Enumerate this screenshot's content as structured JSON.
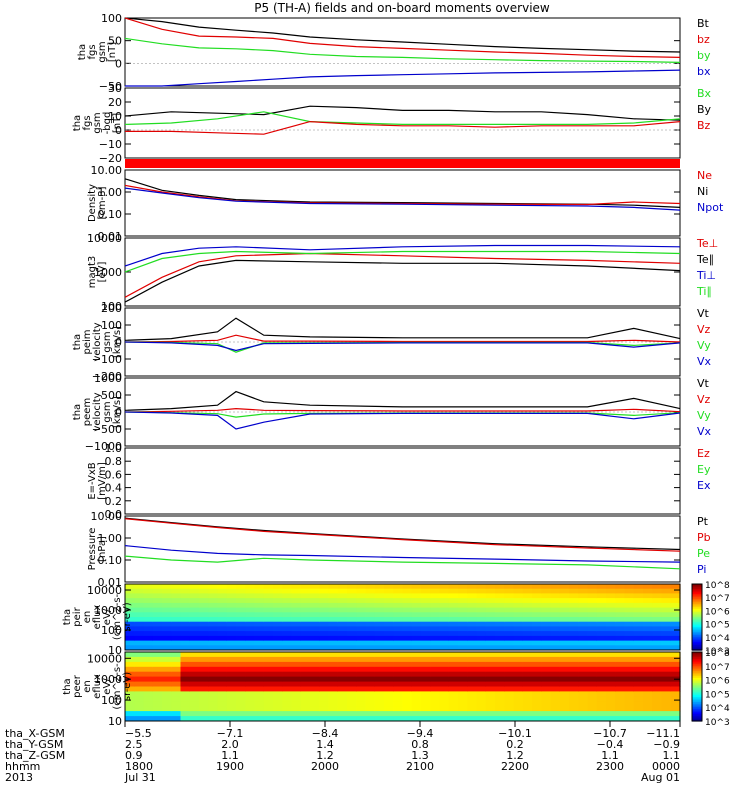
{
  "title": "P5 (TH-A) fields and on-board moments overview",
  "colors": {
    "black": "#000000",
    "red": "#e00000",
    "green": "#22dd22",
    "blue": "#0000cc"
  },
  "chart_data": [
    {
      "type": "line",
      "panel": "fgs_gsm",
      "ylabel": [
        "tha",
        "fgs",
        "gsm",
        "[nT]"
      ],
      "ylim": [
        -50,
        100
      ],
      "ticks": [
        "100",
        "50",
        "0",
        "−50"
      ],
      "tickvalues": [
        100,
        50,
        0,
        -50
      ],
      "legend": [
        "Bt",
        "bz",
        "by",
        "bx"
      ],
      "series": [
        {
          "name": "Bt",
          "color": "black",
          "x": [
            0,
            0.4,
            0.8,
            1.2,
            1.6,
            2,
            2.5,
            3,
            3.5,
            4,
            4.5,
            5,
            5.5,
            6
          ],
          "values": [
            112,
            92,
            80,
            73,
            67,
            58,
            52,
            47,
            42,
            37,
            33,
            30,
            27,
            25
          ]
        },
        {
          "name": "bz",
          "color": "red",
          "x": [
            0,
            0.4,
            0.8,
            1.2,
            1.6,
            2,
            2.5,
            3,
            3.5,
            4,
            4.5,
            5,
            5.5,
            6
          ],
          "values": [
            100,
            75,
            60,
            58,
            55,
            44,
            37,
            33,
            29,
            25,
            22,
            18,
            15,
            13
          ]
        },
        {
          "name": "by",
          "color": "green",
          "x": [
            0,
            0.4,
            0.8,
            1.2,
            1.6,
            2,
            2.5,
            3,
            3.5,
            4,
            4.5,
            5,
            5.5,
            6
          ],
          "values": [
            55,
            43,
            34,
            32,
            28,
            20,
            15,
            13,
            10,
            8,
            6,
            5,
            4,
            2
          ]
        },
        {
          "name": "bx",
          "color": "blue",
          "x": [
            0,
            0.4,
            0.8,
            1.2,
            1.6,
            2,
            2.5,
            3,
            3.5,
            4,
            4.5,
            5,
            5.5,
            6
          ],
          "values": [
            -57,
            -50,
            -45,
            -40,
            -35,
            -30,
            -27,
            -25,
            -23,
            -21,
            -20,
            -19,
            -17,
            -15
          ]
        }
      ]
    },
    {
      "type": "line",
      "panel": "fgs_gsm_detrended",
      "ylabel": [
        "tha",
        "fgs",
        "gsm",
        "-bgd",
        "[nT]"
      ],
      "ylim": [
        -20,
        30
      ],
      "ticks": [
        "30",
        "20",
        "10",
        "0",
        "−10",
        "−20"
      ],
      "tickvalues": [
        30,
        20,
        10,
        0,
        -10,
        -20
      ],
      "legend": [
        "Bx",
        "By",
        "Bz"
      ],
      "series": [
        {
          "name": "Bx",
          "color": "black",
          "x": [
            0,
            0.5,
            1,
            1.5,
            2,
            2.5,
            3,
            3.5,
            4,
            4.5,
            5,
            5.5,
            6
          ],
          "values": [
            10,
            13,
            12,
            11,
            17,
            16,
            14,
            14,
            13,
            13,
            11,
            8,
            7
          ]
        },
        {
          "name": "By",
          "color": "green",
          "x": [
            0,
            0.5,
            1,
            1.5,
            2,
            2.5,
            3,
            3.5,
            4,
            4.5,
            5,
            5.5,
            6
          ],
          "values": [
            4,
            5,
            8,
            13,
            6,
            5,
            4,
            4,
            4,
            4,
            4,
            5,
            8
          ]
        },
        {
          "name": "Bz",
          "color": "red",
          "x": [
            0,
            0.5,
            1,
            1.5,
            2,
            2.5,
            3,
            3.5,
            4,
            4.5,
            5,
            5.5,
            6
          ],
          "values": [
            -1,
            -1,
            -2,
            -3,
            6,
            4,
            3,
            3,
            2,
            3,
            3,
            3,
            6
          ]
        }
      ]
    },
    {
      "type": "line",
      "panel": "density",
      "yscale": "log",
      "ylabel": [
        "Density",
        "[cm-3]"
      ],
      "ylim": [
        0.01,
        10
      ],
      "ticks": [
        "10.00",
        "1.00",
        "0.10",
        "0.01"
      ],
      "tickvalues": [
        10,
        1,
        0.1,
        0.01
      ],
      "legend": [
        "Ne",
        "Ni",
        "Npot"
      ],
      "series": [
        {
          "name": "Ne",
          "color": "black",
          "x": [
            0,
            0.4,
            0.8,
            1.2,
            2,
            3,
            4,
            5,
            5.5,
            6
          ],
          "values": [
            4,
            1.2,
            0.7,
            0.45,
            0.35,
            0.33,
            0.3,
            0.28,
            0.25,
            0.2
          ]
        },
        {
          "name": "Ni",
          "color": "red",
          "x": [
            0,
            0.4,
            0.8,
            1.2,
            2,
            3,
            4,
            5,
            5.5,
            6
          ],
          "values": [
            2,
            1,
            0.6,
            0.4,
            0.32,
            0.3,
            0.28,
            0.27,
            0.35,
            0.3
          ]
        },
        {
          "name": "Npot",
          "color": "blue",
          "x": [
            0,
            0.4,
            0.8,
            1.2,
            2,
            3,
            4,
            5,
            5.5,
            6
          ],
          "values": [
            1.5,
            0.9,
            0.55,
            0.38,
            0.3,
            0.28,
            0.25,
            0.23,
            0.2,
            0.15
          ]
        }
      ]
    },
    {
      "type": "line",
      "panel": "temperature",
      "yscale": "log",
      "ylabel": [
        "magt3",
        "[eV]"
      ],
      "ylim": [
        100,
        10000
      ],
      "ticks": [
        "10000",
        "1000",
        "100"
      ],
      "tickvalues": [
        10000,
        1000,
        100
      ],
      "legend": [
        "Te⊥",
        "Te∥",
        "Ti⊥",
        "Ti∥"
      ],
      "series": [
        {
          "name": "Te⊥",
          "color": "red",
          "x": [
            0,
            0.4,
            0.8,
            1.2,
            2,
            3,
            4,
            5,
            6
          ],
          "values": [
            180,
            700,
            2000,
            3000,
            3500,
            3000,
            2500,
            2200,
            1800
          ]
        },
        {
          "name": "Te∥",
          "color": "black",
          "x": [
            0,
            0.4,
            0.8,
            1.2,
            2,
            3,
            4,
            5,
            6
          ],
          "values": [
            130,
            500,
            1500,
            2200,
            2000,
            1800,
            1800,
            1500,
            1100
          ]
        },
        {
          "name": "Ti⊥",
          "color": "blue",
          "x": [
            0,
            0.4,
            0.8,
            1.2,
            2,
            3,
            4,
            5,
            6
          ],
          "values": [
            1500,
            3500,
            5000,
            5500,
            4500,
            5500,
            6000,
            6000,
            5500
          ]
        },
        {
          "name": "Ti∥",
          "color": "green",
          "x": [
            0,
            0.4,
            0.8,
            1.2,
            2,
            3,
            4,
            5,
            6
          ],
          "values": [
            1000,
            2500,
            3500,
            4000,
            3500,
            4000,
            4000,
            4000,
            3500
          ]
        }
      ]
    },
    {
      "type": "line",
      "panel": "peim_velocity",
      "ylabel": [
        "tha",
        "peim",
        "velocity",
        "gsm",
        "[km/s]"
      ],
      "ylim": [
        -200,
        200
      ],
      "ticks": [
        "200",
        "100",
        "0",
        "−100",
        "−200"
      ],
      "tickvalues": [
        200,
        100,
        0,
        -100,
        -200
      ],
      "legend": [
        "Vt",
        "Vz",
        "Vy",
        "Vx"
      ],
      "series": [
        {
          "name": "Vt",
          "color": "black",
          "x": [
            0,
            0.5,
            1,
            1.2,
            1.5,
            2,
            3,
            4,
            5,
            5.5,
            6
          ],
          "values": [
            10,
            20,
            60,
            140,
            40,
            30,
            25,
            25,
            25,
            80,
            20
          ]
        },
        {
          "name": "Vz",
          "color": "red",
          "x": [
            0,
            0.5,
            1,
            1.2,
            1.5,
            2,
            3,
            4,
            5,
            5.5,
            6
          ],
          "values": [
            0,
            3,
            10,
            40,
            5,
            5,
            3,
            3,
            3,
            10,
            0
          ]
        },
        {
          "name": "Vy",
          "color": "green",
          "x": [
            0,
            0.5,
            1,
            1.2,
            1.5,
            2,
            3,
            4,
            5,
            5.5,
            6
          ],
          "values": [
            0,
            -3,
            -10,
            -60,
            -5,
            -5,
            -3,
            -3,
            -3,
            -20,
            -5
          ]
        },
        {
          "name": "Vx",
          "color": "blue",
          "x": [
            0,
            0.5,
            1,
            1.2,
            1.5,
            2,
            3,
            4,
            5,
            5.5,
            6
          ],
          "values": [
            0,
            -5,
            -20,
            -50,
            -10,
            -8,
            -5,
            -5,
            -5,
            -30,
            -5
          ]
        }
      ]
    },
    {
      "type": "line",
      "panel": "peem_velocity",
      "ylabel": [
        "tha",
        "peem",
        "velocity",
        "gsm",
        "[km/s]"
      ],
      "ylim": [
        -1000,
        1000
      ],
      "ticks": [
        "1000",
        "500",
        "0",
        "−500",
        "−1000"
      ],
      "tickvalues": [
        1000,
        500,
        0,
        -500,
        -1000
      ],
      "legend": [
        "Vt",
        "Vz",
        "Vy",
        "Vx"
      ],
      "series": [
        {
          "name": "Vt",
          "color": "black",
          "x": [
            0,
            0.5,
            1,
            1.2,
            1.5,
            2,
            3,
            4,
            5,
            5.5,
            6
          ],
          "values": [
            50,
            100,
            200,
            600,
            300,
            200,
            150,
            150,
            150,
            400,
            100
          ]
        },
        {
          "name": "Vz",
          "color": "red",
          "x": [
            0,
            0.5,
            1,
            1.2,
            1.5,
            2,
            3,
            4,
            5,
            5.5,
            6
          ],
          "values": [
            0,
            20,
            50,
            100,
            50,
            40,
            30,
            30,
            30,
            80,
            10
          ]
        },
        {
          "name": "Vy",
          "color": "green",
          "x": [
            0,
            0.5,
            1,
            1.2,
            1.5,
            2,
            3,
            4,
            5,
            5.5,
            6
          ],
          "values": [
            0,
            -20,
            -50,
            -150,
            -60,
            -40,
            -30,
            -30,
            -30,
            -100,
            -20
          ]
        },
        {
          "name": "Vx",
          "color": "blue",
          "x": [
            0,
            0.5,
            1,
            1.2,
            1.5,
            2,
            3,
            4,
            5,
            5.5,
            6
          ],
          "values": [
            0,
            -30,
            -100,
            -500,
            -300,
            -60,
            -40,
            -40,
            -40,
            -200,
            -30
          ]
        }
      ]
    },
    {
      "type": "line",
      "panel": "efield",
      "ylabel": [
        "E=-VxB",
        "[mV/m]"
      ],
      "ylim": [
        0,
        1
      ],
      "ticks": [
        "1.0",
        "0.8",
        "0.6",
        "0.4",
        "0.2",
        "0.0"
      ],
      "tickvalues": [
        1,
        0.8,
        0.6,
        0.4,
        0.2,
        0
      ],
      "legend": [
        "Ez",
        "Ey",
        "Ex"
      ],
      "series": []
    },
    {
      "type": "line",
      "panel": "pressure",
      "yscale": "log",
      "ylabel": [
        "Pressure",
        "[nPa]"
      ],
      "ylim": [
        0.01,
        10
      ],
      "ticks": [
        "10.00",
        "1.00",
        "0.10",
        "0.01"
      ],
      "tickvalues": [
        10,
        1,
        0.1,
        0.01
      ],
      "legend": [
        "Pt",
        "Pb",
        "Pe",
        "Pi"
      ],
      "series": [
        {
          "name": "Pt",
          "color": "black",
          "x": [
            0,
            0.5,
            1,
            1.5,
            2,
            3,
            4,
            5,
            6
          ],
          "values": [
            8,
            5,
            3.2,
            2.2,
            1.6,
            0.9,
            0.55,
            0.4,
            0.3
          ]
        },
        {
          "name": "Pb",
          "color": "red",
          "x": [
            0,
            0.5,
            1,
            1.5,
            2,
            3,
            4,
            5,
            6
          ],
          "values": [
            7.5,
            4.7,
            3,
            2,
            1.5,
            0.85,
            0.5,
            0.35,
            0.25
          ]
        },
        {
          "name": "Pe",
          "color": "green",
          "x": [
            0,
            0.5,
            1,
            1.5,
            2,
            3,
            4,
            5,
            6
          ],
          "values": [
            0.15,
            0.1,
            0.08,
            0.12,
            0.1,
            0.08,
            0.07,
            0.06,
            0.04
          ]
        },
        {
          "name": "Pi",
          "color": "blue",
          "x": [
            0,
            0.5,
            1,
            1.5,
            2,
            3,
            4,
            5,
            6
          ],
          "values": [
            0.45,
            0.28,
            0.2,
            0.17,
            0.16,
            0.13,
            0.11,
            0.09,
            0.08
          ]
        }
      ]
    },
    {
      "type": "heatmap",
      "panel": "peir_spectrogram",
      "yscale": "log",
      "ylabel": [
        "tha",
        "peir",
        "en",
        "eflux",
        "eV/",
        "(cm^2-s-",
        "sr-eV)"
      ],
      "ylim": [
        10,
        20000
      ],
      "ticks": [
        "10000",
        "1000",
        "100",
        "10"
      ],
      "tickvalues": [
        10000,
        1000,
        100,
        10
      ],
      "colorbar": {
        "min_exp": 3,
        "max_exp": 8,
        "labels": [
          "10^8",
          "10^7",
          "10^6",
          "10^5",
          "10^4",
          "10^3"
        ]
      },
      "band_profile": [
        0.75,
        0.55,
        0.42,
        0.35
      ]
    },
    {
      "type": "heatmap",
      "panel": "peer_spectrogram",
      "yscale": "log",
      "ylabel": [
        "tha",
        "peer",
        "en",
        "eflux",
        "eV/",
        "(cm^2-s-",
        "sr-eV)"
      ],
      "ylim": [
        10,
        20000
      ],
      "ticks": [
        "10000",
        "1000",
        "100",
        "10"
      ],
      "tickvalues": [
        10000,
        1000,
        100,
        10
      ],
      "colorbar": {
        "min_exp": 3,
        "max_exp": 8,
        "labels": [
          "10^8",
          "10^7",
          "10^6",
          "10^5",
          "10^4",
          "10^3"
        ]
      }
    }
  ],
  "xaxis": {
    "rows": [
      {
        "label": "tha_X-GSM",
        "values": [
          "−5.5",
          "−7.1",
          "−8.4",
          "−9.4",
          "−10.1",
          "−10.7",
          "−11.1"
        ]
      },
      {
        "label": "tha_Y-GSM",
        "values": [
          "2.5",
          "2.0",
          "1.4",
          "0.8",
          "0.2",
          "−0.4",
          "−0.9"
        ]
      },
      {
        "label": "tha_Z-GSM",
        "values": [
          "0.9",
          "1.1",
          "1.2",
          "1.3",
          "1.2",
          "1.1",
          "1.1"
        ]
      },
      {
        "label": "hhmm",
        "values": [
          "1800",
          "1900",
          "2000",
          "2100",
          "2200",
          "2300",
          "0000"
        ]
      },
      {
        "label": "2013",
        "values": [
          "Jul 31",
          "",
          "",
          "",
          "",
          "",
          "Aug 01"
        ]
      }
    ]
  }
}
